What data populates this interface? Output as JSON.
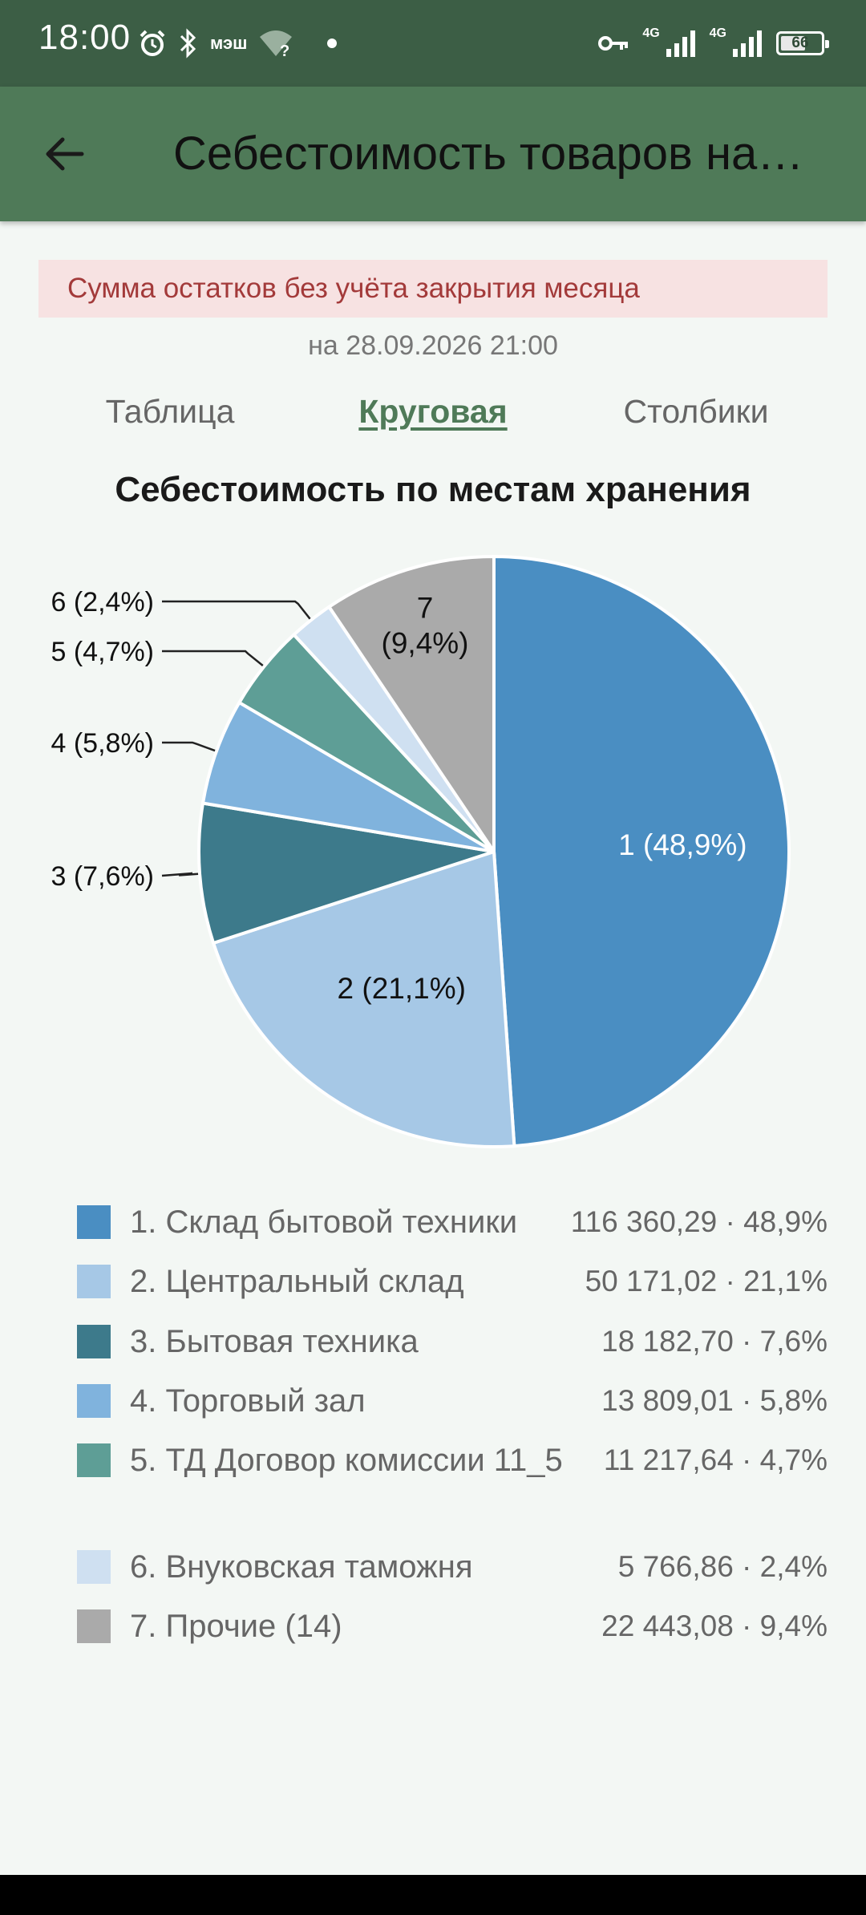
{
  "status_bar": {
    "time": "18:00",
    "net_label": "мэш",
    "sig1_label": "4G",
    "sig2_label": "4G",
    "battery": "66",
    "battery_level": 0.66
  },
  "app_bar": {
    "title": "Себестоимость товаров на…"
  },
  "banner": {
    "text": "Сумма остатков без учёта закрытия месяца"
  },
  "date_line": "на 28.09.2026 21:00",
  "tabs": {
    "table": "Таблица",
    "pie": "Круговая",
    "bars": "Столбики",
    "selected": "pie"
  },
  "chart_data": {
    "type": "pie",
    "title": "Себестоимость по местам хранения",
    "slices": [
      {
        "id": "1",
        "label": "1 (48,9%)",
        "legend": "1. Склад бытовой техники",
        "value": 116360.29,
        "value_text": "116 360,29 · 48,9%",
        "percent": 48.9,
        "color": "#4a8ec2",
        "label_pos": "inside",
        "label_color": "#ffffff"
      },
      {
        "id": "2",
        "label": "2 (21,1%)",
        "legend": "2. Центральный склад",
        "value": 50171.02,
        "value_text": "50 171,02 · 21,1%",
        "percent": 21.1,
        "color": "#a6c8e6",
        "label_pos": "inside",
        "label_color": "#111111"
      },
      {
        "id": "3",
        "label": "3 (7,6%)",
        "legend": "3. Бытовая техника",
        "value": 18182.7,
        "value_text": "18 182,70 · 7,6%",
        "percent": 7.6,
        "color": "#3d7a8b",
        "label_pos": "outside",
        "label_color": "#111111"
      },
      {
        "id": "4",
        "label": "4 (5,8%)",
        "legend": "4. Торговый зал",
        "value": 13809.01,
        "value_text": "13 809,01 · 5,8%",
        "percent": 5.8,
        "color": "#80b3dd",
        "label_pos": "outside",
        "label_color": "#111111"
      },
      {
        "id": "5",
        "label": "5 (4,7%)",
        "legend": "5. ТД Договор комиссии 11_5",
        "value": 11217.64,
        "value_text": "11 217,64 · 4,7%",
        "percent": 4.7,
        "color": "#5e9e96",
        "label_pos": "outside",
        "label_color": "#111111"
      },
      {
        "id": "6",
        "label": "6 (2,4%)",
        "legend": "6. Внуковская таможня",
        "value": 5766.86,
        "value_text": "5 766,86 · 2,4%",
        "percent": 2.4,
        "color": "#cfe0f1",
        "label_pos": "outside",
        "label_color": "#111111"
      },
      {
        "id": "7",
        "label": "7\n(9,4%)",
        "legend": "7. Прочие (14)",
        "value": 22443.08,
        "value_text": "22 443,08 · 9,4%",
        "percent": 9.4,
        "color": "#aaaaaa",
        "label_pos": "inside",
        "label_color": "#111111"
      }
    ]
  }
}
